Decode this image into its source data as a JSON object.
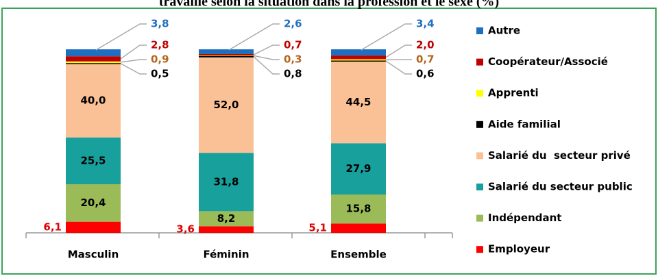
{
  "chart_data": {
    "type": "stacked_bar",
    "title": "travaille selon la situation dans la profession et le sexe (%)",
    "categories": [
      "Masculin",
      "Féminin",
      "Ensemble"
    ],
    "series": [
      {
        "name": "Employeur",
        "color": "#ff0000",
        "label_color": "#e00000",
        "values": [
          6.1,
          3.6,
          5.1
        ],
        "value_labels": [
          "6,1",
          "3,6",
          "5,1"
        ]
      },
      {
        "name": "Indépendant",
        "color": "#9bbb59",
        "label_color": "#000000",
        "values": [
          20.4,
          8.2,
          15.8
        ],
        "value_labels": [
          "20,4",
          "8,2",
          "15,8"
        ]
      },
      {
        "name": "Salarié du secteur public",
        "color": "#17a09c",
        "label_color": "#000000",
        "values": [
          25.5,
          31.8,
          27.9
        ],
        "value_labels": [
          "25,5",
          "31,8",
          "27,9"
        ]
      },
      {
        "name": "Salarié du  secteur privé",
        "color": "#fac196",
        "label_color": "#000000",
        "values": [
          40.0,
          52.0,
          44.5
        ],
        "value_labels": [
          "40,0",
          "52,0",
          "44,5"
        ]
      },
      {
        "name": "Aide familial",
        "color": "#000000",
        "label_color": "#000000",
        "values": [
          0.5,
          0.8,
          0.6
        ],
        "value_labels": [
          "0,5",
          "0,8",
          "0,6"
        ]
      },
      {
        "name": "Apprenti",
        "color": "#ffff00",
        "label_color": "#b5651d",
        "values": [
          0.9,
          0.3,
          0.7
        ],
        "value_labels": [
          "0,9",
          "0,3",
          "0,7"
        ]
      },
      {
        "name": "Coopérateur/Associé",
        "color": "#c00000",
        "label_color": "#c00000",
        "values": [
          2.8,
          0.7,
          2.0
        ],
        "value_labels": [
          "2,8",
          "0,7",
          "2,0"
        ]
      },
      {
        "name": "Autre",
        "color": "#1f6fc0",
        "label_color": "#1f6fc0",
        "values": [
          3.8,
          2.6,
          3.4
        ],
        "value_labels": [
          "3,8",
          "2,6",
          "3,4"
        ]
      }
    ]
  }
}
